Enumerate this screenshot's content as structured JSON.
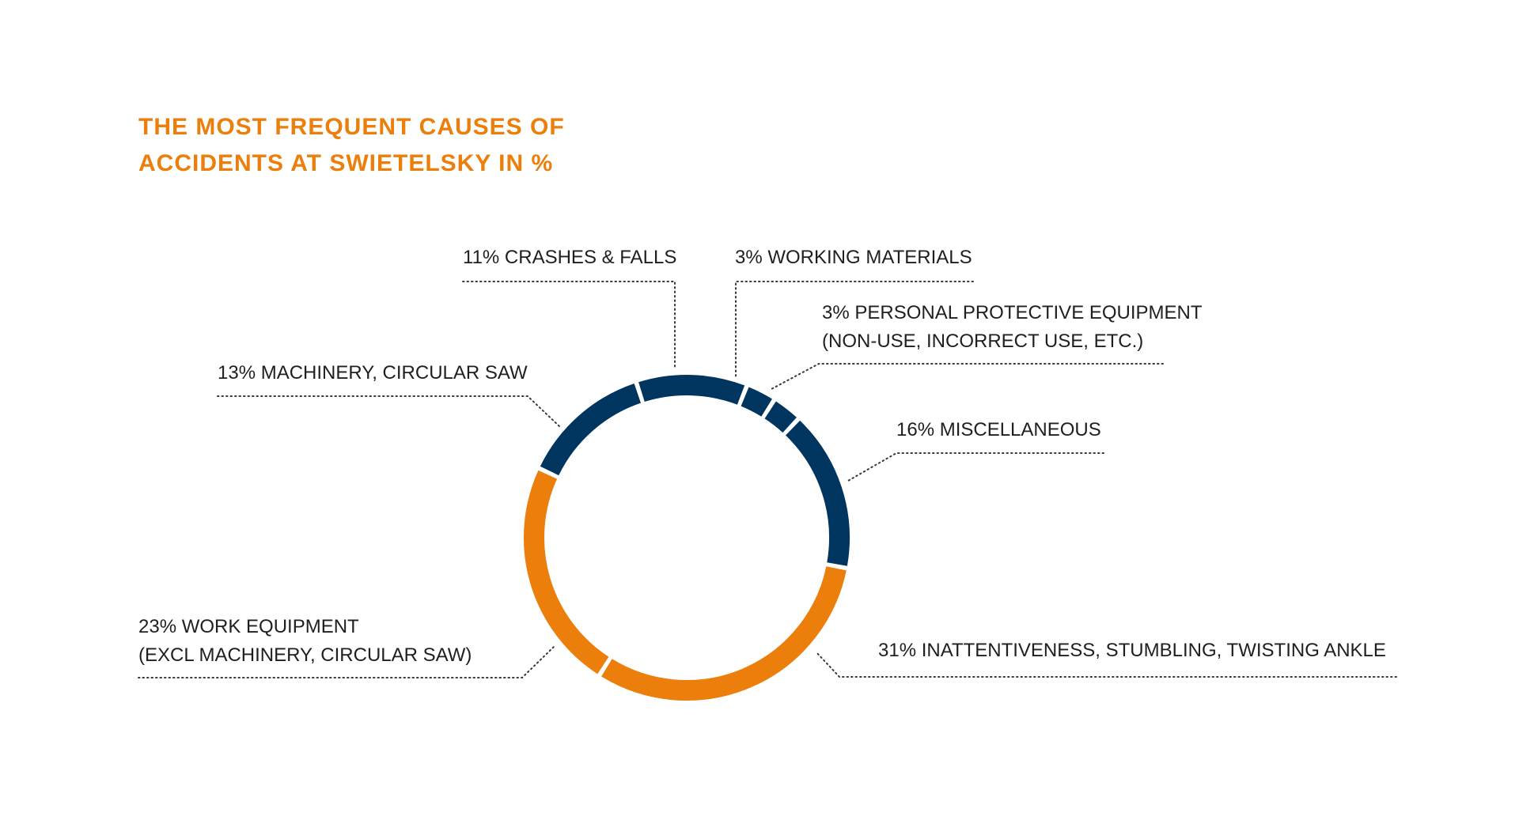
{
  "colors": {
    "title": "#ec7e0b",
    "navy": "#003560",
    "orange": "#ec7e0b",
    "text": "#1f1f1f"
  },
  "chart_data": {
    "type": "pie",
    "title": [
      "THE MOST FREQUENT CAUSES OF",
      "ACCIDENTS AT SWIETELSKY IN %"
    ],
    "unit": "%",
    "slices": [
      {
        "label": "3% WORKING MATERIALS",
        "value": 3,
        "color": "navy"
      },
      {
        "label": "3% PERSONAL PROTECTIVE EQUIPMENT (NON-USE, INCORRECT USE, ETC.)",
        "value": 3,
        "color": "navy"
      },
      {
        "label": "16% MISCELLANEOUS",
        "value": 16,
        "color": "navy"
      },
      {
        "label": "31% INATTENTIVENESS, STUMBLING, TWISTING ANKLE",
        "value": 31,
        "color": "orange"
      },
      {
        "label": "23% WORK EQUIPMENT (EXCL MACHINERY, CIRCULAR SAW)",
        "value": 23,
        "color": "orange"
      },
      {
        "label": "13% MACHINERY, CIRCULAR SAW",
        "value": 13,
        "color": "navy"
      },
      {
        "label": "11% CRASHES & FALLS",
        "value": 11,
        "color": "navy"
      }
    ]
  },
  "labels": {
    "crashes": "11% CRASHES & FALLS",
    "working_materials": "3% WORKING MATERIALS",
    "ppe_line1": "3% PERSONAL PROTECTIVE EQUIPMENT",
    "ppe_line2": "(NON-USE, INCORRECT USE, ETC.)",
    "machinery": "13% MACHINERY, CIRCULAR SAW",
    "miscellaneous": "16% MISCELLANEOUS",
    "work_equipment_line1": "23% WORK EQUIPMENT",
    "work_equipment_line2": "(EXCL MACHINERY, CIRCULAR SAW)",
    "inattentiveness": "31% INATTENTIVENESS, STUMBLING, TWISTING ANKLE"
  }
}
